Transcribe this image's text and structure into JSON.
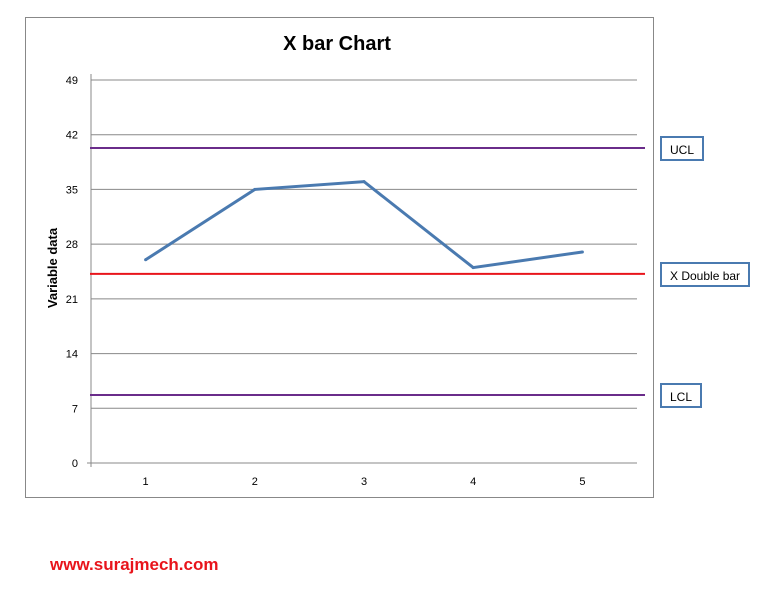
{
  "chart_data": {
    "type": "line",
    "title": "X bar Chart",
    "xlabel": "",
    "ylabel": "Variable data",
    "categories": [
      "1",
      "2",
      "3",
      "4",
      "5"
    ],
    "values": [
      26,
      35,
      36,
      25,
      27
    ],
    "ylim": [
      0,
      49
    ],
    "yticks": [
      0,
      7,
      14,
      21,
      28,
      35,
      42,
      49
    ],
    "grid": true,
    "reference_lines": [
      {
        "label": "UCL",
        "value": 40.3,
        "color": "#6a2c8a"
      },
      {
        "label": "X Double bar",
        "value": 24.2,
        "color": "#e8141b"
      },
      {
        "label": "LCL",
        "value": 8.7,
        "color": "#6a2c8a"
      }
    ],
    "series_color": "#4a7ab0"
  },
  "footer": {
    "website": "www.surajmech.com"
  }
}
